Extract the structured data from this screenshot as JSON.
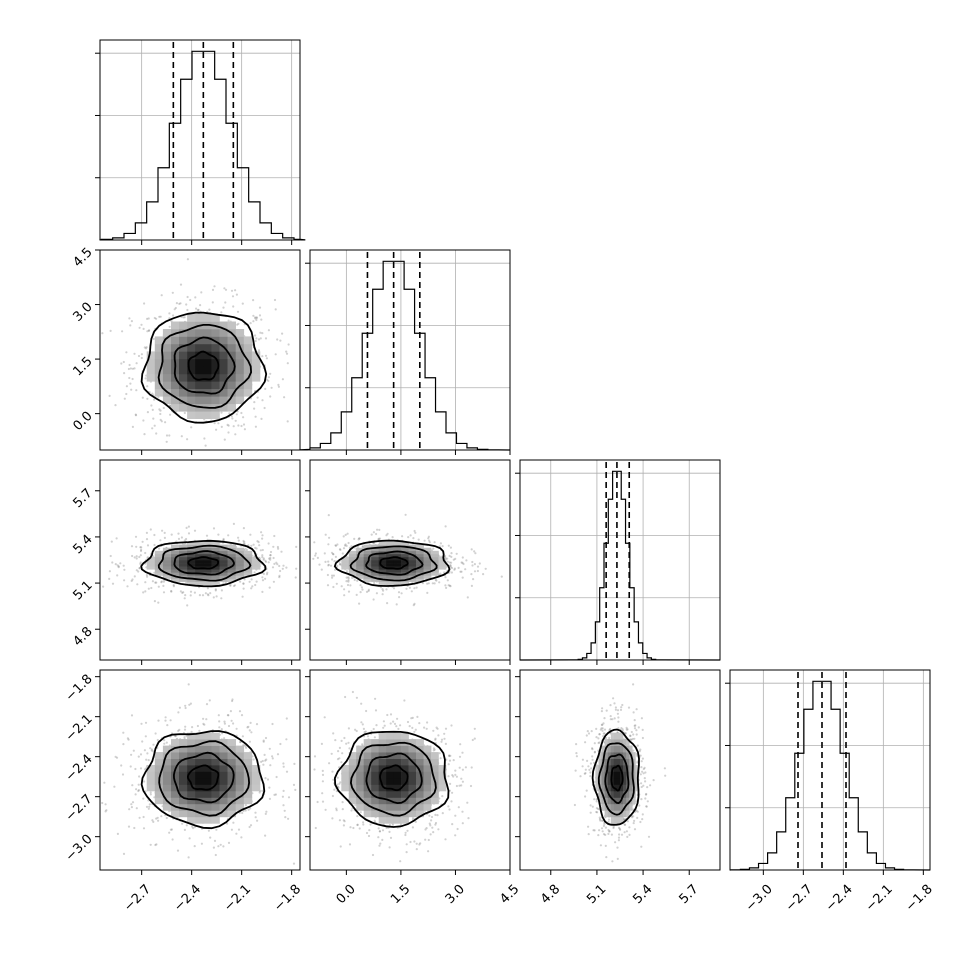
{
  "chart_data": {
    "type": "corner",
    "parameters": [
      {
        "mean": -2.33,
        "std": 0.17,
        "range": [
          -2.95,
          -1.75
        ],
        "ticks": [
          -2.7,
          -2.4,
          -2.1,
          -1.8
        ],
        "tick_labels": [
          "−2.7",
          "−2.4",
          "−2.1",
          "−1.8"
        ],
        "quantiles": [
          -2.51,
          -2.33,
          -2.15
        ]
      },
      {
        "mean": 1.3,
        "std": 0.72,
        "range": [
          -1.0,
          4.5
        ],
        "ticks": [
          0.0,
          1.5,
          3.0,
          4.5
        ],
        "tick_labels": [
          "0.0",
          "1.5",
          "3.0",
          "4.5"
        ],
        "quantiles": [
          0.58,
          1.3,
          2.02
        ]
      },
      {
        "mean": 5.23,
        "std": 0.07,
        "range": [
          4.6,
          5.9
        ],
        "ticks": [
          4.8,
          5.1,
          5.4,
          5.7
        ],
        "tick_labels": [
          "4.8",
          "5.1",
          "5.4",
          "5.7"
        ],
        "quantiles": [
          5.16,
          5.23,
          5.31
        ]
      },
      {
        "mean": -2.56,
        "std": 0.17,
        "range": [
          -3.25,
          -1.75
        ],
        "ticks": [
          -3.0,
          -2.7,
          -2.4,
          -2.1,
          -1.8
        ],
        "tick_labels": [
          "−3.0",
          "−2.7",
          "−2.4",
          "−2.1",
          "−1.8"
        ],
        "quantiles": [
          -2.74,
          -2.56,
          -2.38
        ]
      }
    ],
    "y_axis_ticks": [
      {
        "row": 1,
        "ticks": [
          0.0,
          1.5,
          3.0,
          4.5
        ],
        "tick_labels": [
          "0.0",
          "1.5",
          "3.0",
          "4.5"
        ]
      },
      {
        "row": 2,
        "ticks": [
          4.8,
          5.1,
          5.4,
          5.7
        ],
        "tick_labels": [
          "4.8",
          "5.1",
          "5.4",
          "5.7"
        ]
      },
      {
        "row": 3,
        "ticks": [
          -3.0,
          -2.7,
          -2.4,
          -2.1,
          -1.8
        ],
        "tick_labels": [
          "−3.0",
          "−2.7",
          "−2.4",
          "−2.1",
          "−1.8"
        ]
      }
    ],
    "contour_levels_sigma": [
      0.5,
      1.0,
      1.5,
      2.0
    ],
    "histogram_bins": 20,
    "diagonal_grid": true,
    "offdiagonal_grid": false,
    "colors": {
      "line": "#000000",
      "grid": "#b0b0b0",
      "scatter": "#7a7a7a"
    }
  }
}
